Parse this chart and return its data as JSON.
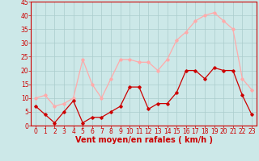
{
  "hours": [
    0,
    1,
    2,
    3,
    4,
    5,
    6,
    7,
    8,
    9,
    10,
    11,
    12,
    13,
    14,
    15,
    16,
    17,
    18,
    19,
    20,
    21,
    22,
    23
  ],
  "wind_avg": [
    7,
    4,
    1,
    5,
    9,
    1,
    3,
    3,
    5,
    7,
    14,
    14,
    6,
    8,
    8,
    12,
    20,
    20,
    17,
    21,
    20,
    20,
    11,
    4
  ],
  "wind_gust": [
    10,
    11,
    7,
    8,
    10,
    24,
    15,
    10,
    17,
    24,
    24,
    23,
    23,
    20,
    24,
    31,
    34,
    38,
    40,
    41,
    38,
    35,
    17,
    13
  ],
  "avg_color": "#cc0000",
  "gust_color": "#ffaaaa",
  "bg_color": "#cce8e8",
  "grid_color": "#aacccc",
  "xlabel": "Vent moyen/en rafales ( km/h )",
  "xlabel_color": "#cc0000",
  "ylim": [
    0,
    45
  ],
  "yticks": [
    0,
    5,
    10,
    15,
    20,
    25,
    30,
    35,
    40,
    45
  ],
  "xticks": [
    0,
    1,
    2,
    3,
    4,
    5,
    6,
    7,
    8,
    9,
    10,
    11,
    12,
    13,
    14,
    15,
    16,
    17,
    18,
    19,
    20,
    21,
    22,
    23
  ],
  "tick_fontsize": 5.5,
  "xlabel_fontsize": 7,
  "marker": "D",
  "markersize": 1.8,
  "linewidth": 0.9
}
